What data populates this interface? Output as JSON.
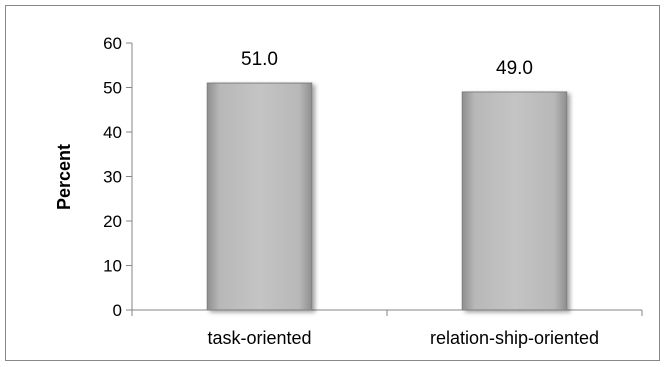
{
  "chart_data": {
    "type": "bar",
    "categories": [
      "task-oriented",
      "relation-ship-oriented"
    ],
    "values": [
      51.0,
      49.0
    ],
    "data_labels": [
      "51.0",
      "49.0"
    ],
    "title": "",
    "xlabel": "",
    "ylabel": "Percent",
    "ylim": [
      0,
      60
    ],
    "yticks": [
      "0",
      "10",
      "20",
      "30",
      "40",
      "50",
      "60"
    ],
    "grid": false,
    "legend": "none",
    "bar_color": "#b3b3b3",
    "bar_edge_color": "#7f7f7f"
  }
}
